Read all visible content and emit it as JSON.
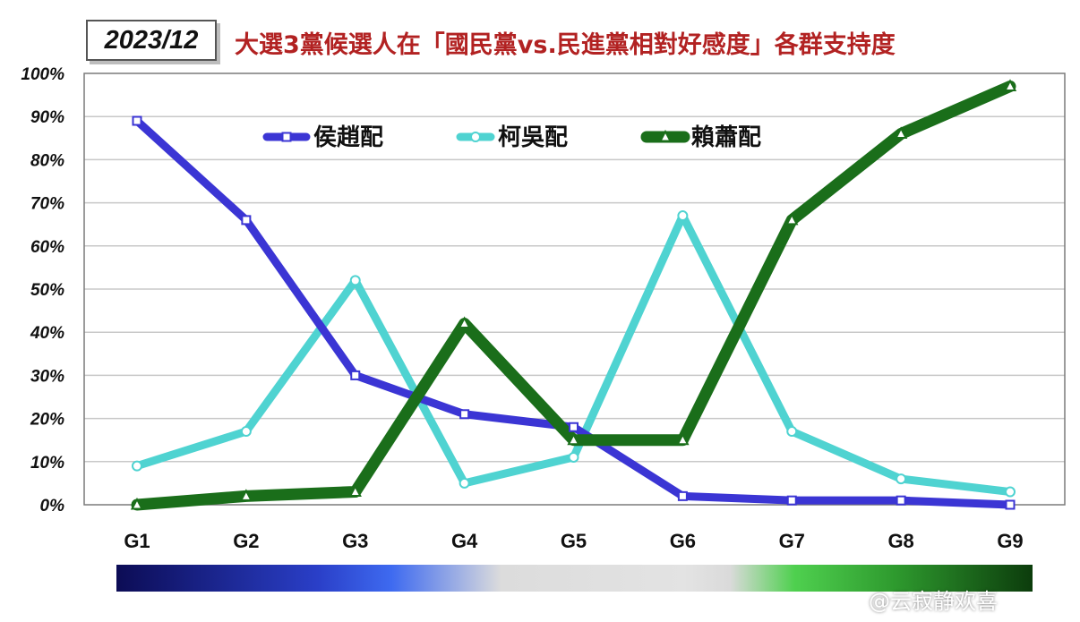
{
  "header": {
    "date_label": "2023/12",
    "title": "大選3黨候選人在「國民黨vs.民進黨相對好感度」各群支持度"
  },
  "watermark": "@云寂静欢喜",
  "chart_data": {
    "type": "line",
    "title": "大選3黨候選人在「國民黨vs.民進黨相對好感度」各群支持度",
    "xlabel": "",
    "ylabel": "",
    "categories": [
      "G1",
      "G2",
      "G3",
      "G4",
      "G5",
      "G6",
      "G7",
      "G8",
      "G9"
    ],
    "ylim": [
      0,
      100
    ],
    "yticks": [
      "0%",
      "10%",
      "20%",
      "30%",
      "40%",
      "50%",
      "60%",
      "70%",
      "80%",
      "90%",
      "100%"
    ],
    "grid": true,
    "legend": "top-inside",
    "series": [
      {
        "name": "侯趙配",
        "color": "#3b35d4",
        "marker": "square",
        "width": 9,
        "values": [
          89,
          66,
          30,
          21,
          18,
          2,
          1,
          1,
          0
        ]
      },
      {
        "name": "柯吳配",
        "color": "#4fd3d1",
        "marker": "circle",
        "width": 9,
        "values": [
          9,
          17,
          52,
          5,
          11,
          67,
          17,
          6,
          3
        ]
      },
      {
        "name": "賴蕭配",
        "color": "#1a6e1a",
        "marker": "triangle",
        "width": 13,
        "values": [
          0,
          2,
          3,
          42,
          15,
          15,
          66,
          86,
          97
        ]
      }
    ]
  }
}
